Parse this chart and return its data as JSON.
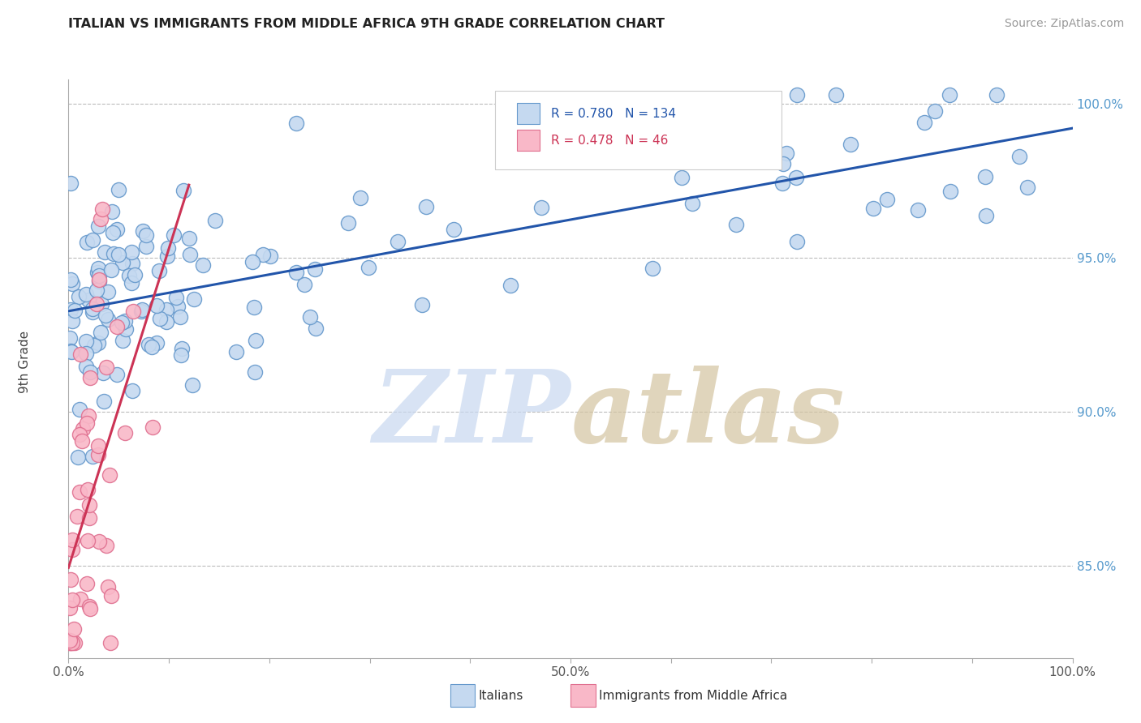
{
  "title": "ITALIAN VS IMMIGRANTS FROM MIDDLE AFRICA 9TH GRADE CORRELATION CHART",
  "source": "Source: ZipAtlas.com",
  "ylabel": "9th Grade",
  "xlim": [
    0.0,
    1.0
  ],
  "ylim": [
    0.82,
    1.008
  ],
  "legend_r1": "R = 0.780",
  "legend_n1": "N = 134",
  "legend_r2": "R = 0.478",
  "legend_n2": "N = 46",
  "italian_color": "#c5d9f0",
  "italian_edge": "#6699cc",
  "immigrant_color": "#f9b8c8",
  "immigrant_edge": "#e07090",
  "italian_line_color": "#2255aa",
  "immigrant_line_color": "#cc3355",
  "grid_color": "#bbbbbb",
  "watermark_zip": "#c8d8f0",
  "watermark_atlas": "#d8c8b0",
  "background_color": "#ffffff",
  "title_fontsize": 11.5,
  "source_fontsize": 10,
  "ytick_color": "#5599cc",
  "xtick_color": "#555555"
}
